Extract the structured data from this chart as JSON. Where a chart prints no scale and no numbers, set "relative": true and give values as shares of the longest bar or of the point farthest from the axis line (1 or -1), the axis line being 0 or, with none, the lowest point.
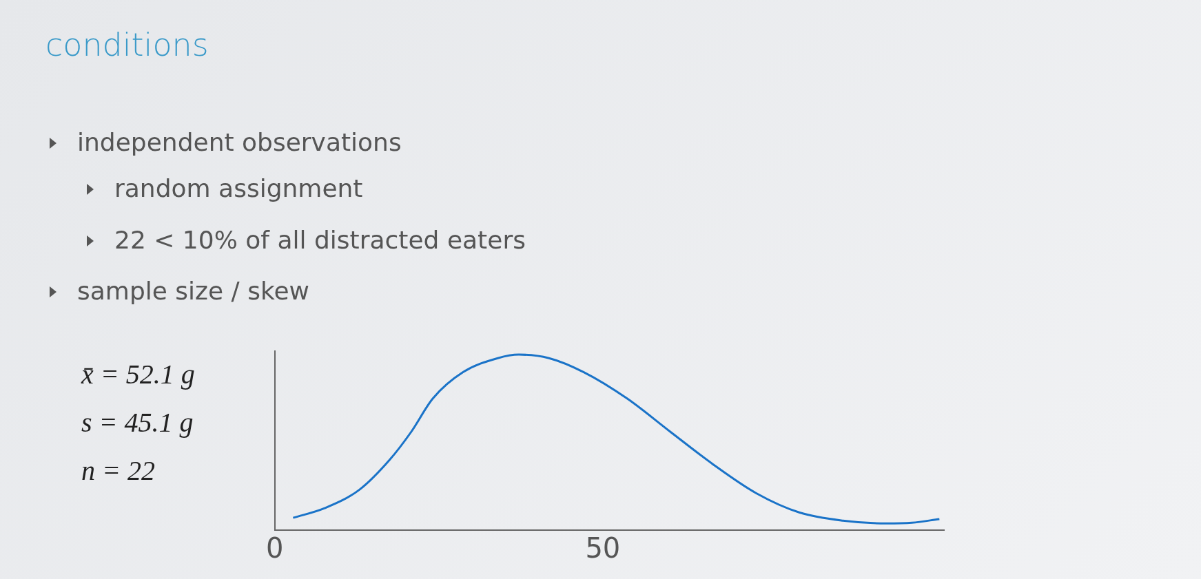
{
  "chart_data": {
    "type": "line",
    "title": "conditions",
    "annotations": [
      "independent observations",
      "random assignment",
      "22 < 10% of all distracted eaters",
      "sample size / skew",
      "x̄ = 52.1 g",
      "s = 45.1 g",
      "n = 22"
    ],
    "x": [
      2.8,
      7.6,
      12.9,
      17.5,
      20.8,
      24.1,
      28.7,
      34,
      37.2,
      41.8,
      47.1,
      53.7,
      60.3,
      66.8,
      73.4,
      80,
      86.6,
      93.2,
      97.1,
      101.3
    ],
    "series": [
      {
        "color": "#1a73c8",
        "values": [
          0.07,
          0.125,
          0.23,
          0.4,
          0.56,
          0.75,
          0.9,
          0.98,
          1,
          0.98,
          0.9,
          0.75,
          0.56,
          0.375,
          0.21,
          0.1,
          0.054,
          0.038,
          0.042,
          0.063
        ]
      }
    ],
    "relative": true,
    "xlim": [
      0,
      102
    ],
    "xticks": [
      0,
      50
    ],
    "grid": false,
    "legend": false,
    "marker": "none",
    "line_style": "solid"
  }
}
